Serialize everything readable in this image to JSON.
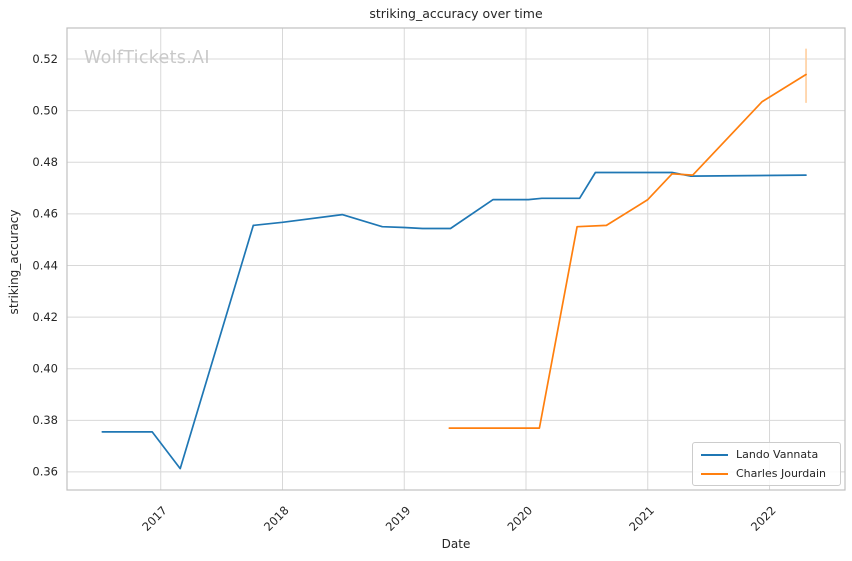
{
  "watermark": "WolfTickets.AI",
  "colors": {
    "blue": "#1f77b4",
    "orange": "#ff7f0e",
    "error_bar": "#ffcf9e",
    "grid": "#d8d8d8",
    "spine": "#c0c0c0",
    "text": "#262626",
    "watermark_gray": "#c9c9c9"
  },
  "chart_data": {
    "type": "line",
    "title": "striking_accuracy over time",
    "xlabel": "Date",
    "ylabel": "striking_accuracy",
    "grid": true,
    "legend_position": "lower right",
    "xlim": [
      2016.23,
      2022.62
    ],
    "ylim": [
      0.353,
      0.532
    ],
    "x_ticks": [
      2017,
      2018,
      2019,
      2020,
      2021,
      2022
    ],
    "x_tick_labels": [
      "2017",
      "2018",
      "2019",
      "2020",
      "2021",
      "2022"
    ],
    "y_ticks": [
      0.36,
      0.38,
      0.4,
      0.42,
      0.44,
      0.46,
      0.48,
      0.5,
      0.52
    ],
    "y_tick_labels": [
      "0.36",
      "0.38",
      "0.40",
      "0.42",
      "0.44",
      "0.46",
      "0.48",
      "0.50",
      "0.52"
    ],
    "series": [
      {
        "name": "Lando Vannata",
        "color": "#1f77b4",
        "x": [
          2016.52,
          2016.93,
          2017.16,
          2017.76,
          2018.0,
          2018.49,
          2018.82,
          2019.0,
          2019.15,
          2019.38,
          2019.73,
          2020.02,
          2020.13,
          2020.44,
          2020.57,
          2021.2,
          2021.35,
          2022.3
        ],
        "y": [
          0.3755,
          0.3755,
          0.3613,
          0.4555,
          0.4567,
          0.4597,
          0.455,
          0.4547,
          0.4543,
          0.4543,
          0.4655,
          0.4655,
          0.466,
          0.466,
          0.476,
          0.476,
          0.4746,
          0.475
        ]
      },
      {
        "name": "Charles Jourdain",
        "color": "#ff7f0e",
        "x": [
          2019.37,
          2020.11,
          2020.42,
          2020.66,
          2021.0,
          2021.2,
          2021.37,
          2021.94,
          2022.3
        ],
        "y": [
          0.377,
          0.377,
          0.455,
          0.4555,
          0.4655,
          0.4755,
          0.475,
          0.5035,
          0.514
        ],
        "error_bar": {
          "x": 2022.3,
          "low": 0.503,
          "high": 0.524
        }
      }
    ]
  }
}
